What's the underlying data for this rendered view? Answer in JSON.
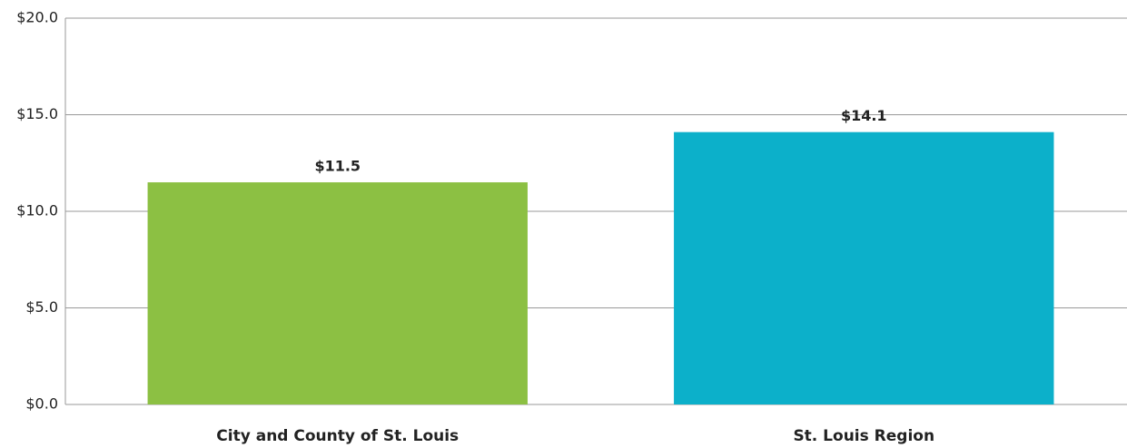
{
  "chart_data": {
    "type": "bar",
    "categories": [
      "City and County of St. Louis",
      "St. Louis Region"
    ],
    "values": [
      11.5,
      14.1
    ],
    "value_labels": [
      "$11.5",
      "$14.1"
    ],
    "colors": [
      "#8cc043",
      "#0cb0ca"
    ],
    "ylim": [
      0,
      20
    ],
    "yticks": [
      {
        "value": 0,
        "label": "$0.0"
      },
      {
        "value": 5,
        "label": "$5.0"
      },
      {
        "value": 10,
        "label": "$10.0"
      },
      {
        "value": 15,
        "label": "$15.0"
      },
      {
        "value": 20,
        "label": "$20.0"
      }
    ],
    "grid": true
  }
}
